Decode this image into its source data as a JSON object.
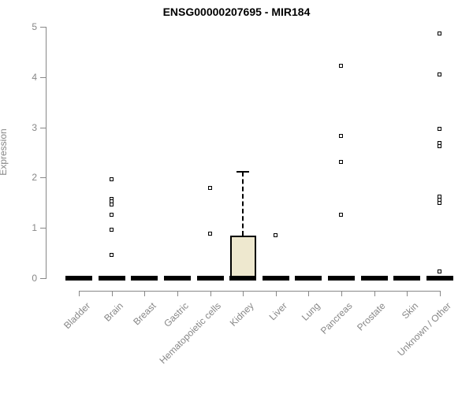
{
  "chart_data": {
    "type": "boxplot",
    "title": "ENSG00000207695 - MIR184",
    "xlabel": "",
    "ylabel": "Expression",
    "ylim": [
      0,
      5
    ],
    "yticks": [
      "0",
      "1",
      "2",
      "3",
      "4",
      "5"
    ],
    "grid": false,
    "legend": "none",
    "categories": [
      "Bladder",
      "Brain",
      "Breast",
      "Gastric",
      "Hematopoietic cells",
      "Kidney",
      "Liver",
      "Lung",
      "Pancreas",
      "Prostate",
      "Skin",
      "Unknown / Other"
    ],
    "boxes": [
      {
        "category": "Bladder",
        "q1": 0,
        "median": 0,
        "q3": 0,
        "whisker_low": 0,
        "whisker_high": 0,
        "outliers": []
      },
      {
        "category": "Brain",
        "q1": 0,
        "median": 0,
        "q3": 0,
        "whisker_low": 0,
        "whisker_high": 0,
        "outliers": [
          1.96,
          1.57,
          1.52,
          1.46,
          1.26,
          0.95,
          0.45
        ]
      },
      {
        "category": "Breast",
        "q1": 0,
        "median": 0,
        "q3": 0,
        "whisker_low": 0,
        "whisker_high": 0,
        "outliers": []
      },
      {
        "category": "Gastric",
        "q1": 0,
        "median": 0,
        "q3": 0,
        "whisker_low": 0,
        "whisker_high": 0,
        "outliers": []
      },
      {
        "category": "Hematopoietic cells",
        "q1": 0,
        "median": 0,
        "q3": 0,
        "whisker_low": 0,
        "whisker_high": 0,
        "outliers": [
          1.79,
          0.88
        ]
      },
      {
        "category": "Kidney",
        "q1": 0,
        "median": 0,
        "q3": 0.84,
        "whisker_low": 0,
        "whisker_high": 2.12,
        "outliers": []
      },
      {
        "category": "Liver",
        "q1": 0,
        "median": 0,
        "q3": 0,
        "whisker_low": 0,
        "whisker_high": 0,
        "outliers": [
          0.85
        ]
      },
      {
        "category": "Lung",
        "q1": 0,
        "median": 0,
        "q3": 0,
        "whisker_low": 0,
        "whisker_high": 0,
        "outliers": []
      },
      {
        "category": "Pancreas",
        "q1": 0,
        "median": 0,
        "q3": 0,
        "whisker_low": 0,
        "whisker_high": 0,
        "outliers": [
          4.21,
          2.82,
          2.3,
          1.26
        ]
      },
      {
        "category": "Prostate",
        "q1": 0,
        "median": 0,
        "q3": 0,
        "whisker_low": 0,
        "whisker_high": 0,
        "outliers": []
      },
      {
        "category": "Skin",
        "q1": 0,
        "median": 0,
        "q3": 0,
        "whisker_low": 0,
        "whisker_high": 0,
        "outliers": []
      },
      {
        "category": "Unknown / Other",
        "q1": 0,
        "median": 0,
        "q3": 0,
        "whisker_low": 0,
        "whisker_high": 0,
        "outliers": [
          4.86,
          4.04,
          2.97,
          2.68,
          2.61,
          1.61,
          1.55,
          1.49,
          0.13
        ]
      }
    ],
    "colors": {
      "box_fill": "#EEE8CF",
      "box_border": "#000000",
      "median": "#000000",
      "outlier": "#000000",
      "axis": "#888888",
      "tick_label": "#878787",
      "title": "#000000"
    }
  }
}
